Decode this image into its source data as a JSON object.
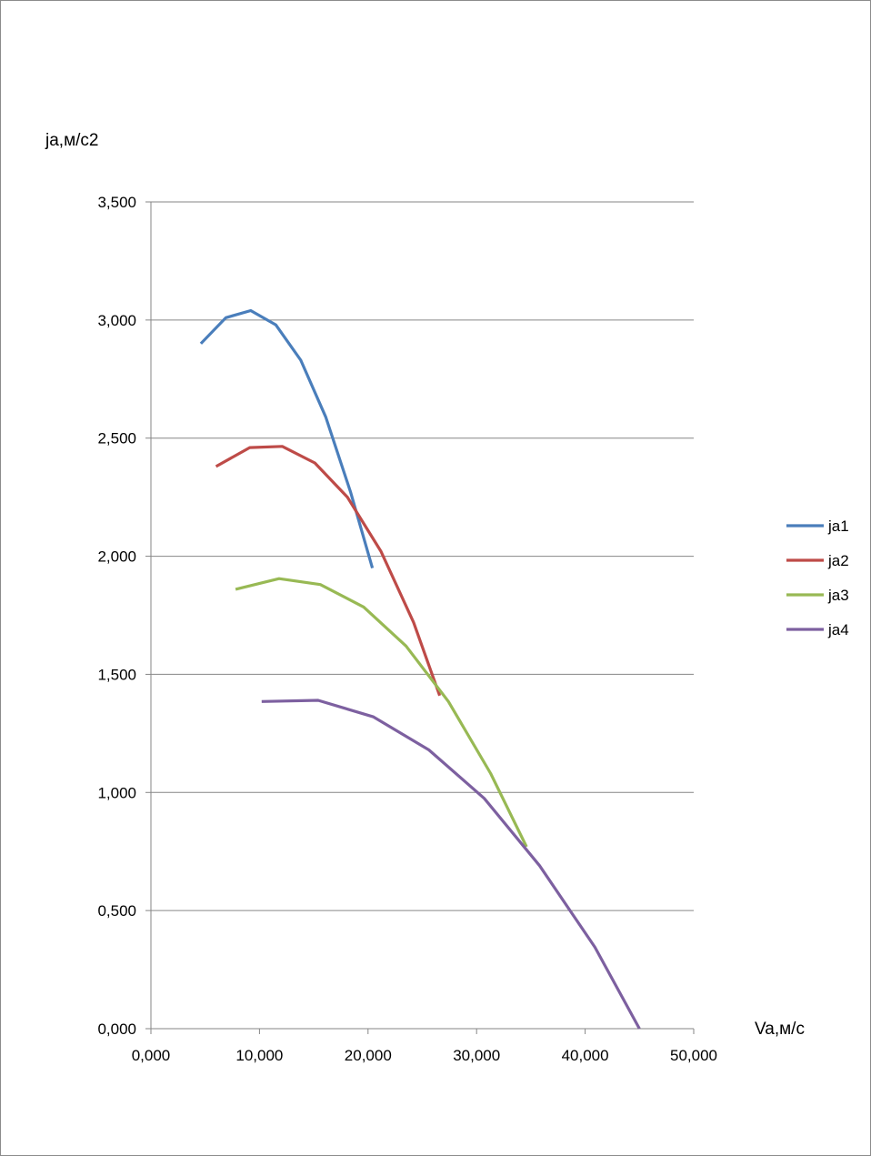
{
  "chart_data": {
    "type": "line",
    "title": "",
    "xlabel": "Va,м/с",
    "ylabel": "ja,м/с2",
    "xlim": [
      0,
      50
    ],
    "ylim": [
      0,
      3.5
    ],
    "x_ticks": [
      "0,000",
      "10,000",
      "20,000",
      "30,000",
      "40,000",
      "50,000"
    ],
    "y_ticks": [
      "0,000",
      "0,500",
      "1,000",
      "1,500",
      "2,000",
      "2,500",
      "3,000",
      "3,500"
    ],
    "grid": "horizontal",
    "legend_position": "right",
    "series": [
      {
        "name": "ja1",
        "color": "#4a7ebb",
        "points": [
          [
            4.6,
            2.9
          ],
          [
            6.9,
            3.01
          ],
          [
            9.2,
            3.04
          ],
          [
            11.5,
            2.98
          ],
          [
            13.8,
            2.83
          ],
          [
            16.1,
            2.59
          ],
          [
            18.4,
            2.27
          ],
          [
            20.4,
            1.95
          ]
        ]
      },
      {
        "name": "ja2",
        "color": "#be4b48",
        "points": [
          [
            6.0,
            2.38
          ],
          [
            9.1,
            2.46
          ],
          [
            12.1,
            2.465
          ],
          [
            15.1,
            2.395
          ],
          [
            18.1,
            2.25
          ],
          [
            21.2,
            2.02
          ],
          [
            24.2,
            1.72
          ],
          [
            26.6,
            1.41
          ]
        ]
      },
      {
        "name": "ja3",
        "color": "#98b954",
        "points": [
          [
            7.8,
            1.86
          ],
          [
            11.8,
            1.905
          ],
          [
            15.6,
            1.88
          ],
          [
            19.6,
            1.785
          ],
          [
            23.5,
            1.62
          ],
          [
            27.4,
            1.385
          ],
          [
            31.3,
            1.08
          ],
          [
            34.6,
            0.77
          ]
        ]
      },
      {
        "name": "ja4",
        "color": "#7d60a0",
        "points": [
          [
            10.2,
            1.385
          ],
          [
            15.4,
            1.39
          ],
          [
            20.5,
            1.32
          ],
          [
            25.6,
            1.18
          ],
          [
            30.7,
            0.975
          ],
          [
            35.8,
            0.69
          ],
          [
            40.9,
            0.345
          ],
          [
            45.0,
            0.0
          ]
        ]
      }
    ]
  }
}
